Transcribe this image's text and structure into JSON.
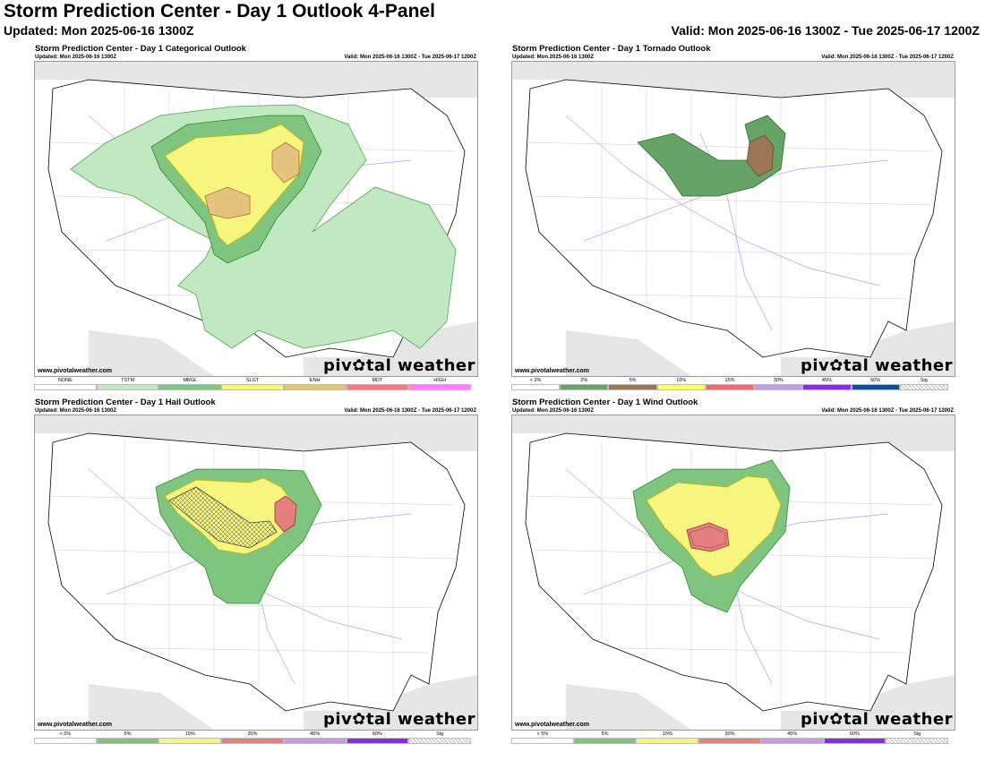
{
  "header": {
    "title": "Storm Prediction Center - Day 1 Outlook 4-Panel",
    "updated": "Updated: Mon 2025-06-16 1300Z",
    "valid": "Valid: Mon 2025-06-16 1300Z - Tue 2025-06-17 1200Z"
  },
  "panels": [
    {
      "title": "Storm Prediction Center - Day 1 Categorical Outlook",
      "updated": "Updated: Mon 2025-06-16 1300Z",
      "valid": "Valid: Mon 2025-06-16 1300Z - Tue 2025-06-17 1200Z",
      "site": "www.pivotalweather.com",
      "brand": "piv✿tal weather",
      "legend": [
        {
          "label": "NONE",
          "color": "#ffffff"
        },
        {
          "label": "TSTM",
          "color": "#c1e9c1"
        },
        {
          "label": "MRGL",
          "color": "#7fc57f"
        },
        {
          "label": "SLGT",
          "color": "#f6f67f"
        },
        {
          "label": "ENH",
          "color": "#e6c27f"
        },
        {
          "label": "MDT",
          "color": "#e67f7f"
        },
        {
          "label": "HIGH",
          "color": "#ff7fff"
        }
      ]
    },
    {
      "title": "Storm Prediction Center - Day 1 Tornado Outlook",
      "updated": "Updated: Mon 2025-06-16 1300Z",
      "valid": "Valid: Mon 2025-06-16 1300Z - Tue 2025-06-17 1200Z",
      "site": "www.pivotalweather.com",
      "brand": "piv✿tal weather",
      "legend": [
        {
          "label": "< 2%",
          "color": "#ffffff"
        },
        {
          "label": "2%",
          "color": "#66a366"
        },
        {
          "label": "5%",
          "color": "#9d7657"
        },
        {
          "label": "10%",
          "color": "#ffff66"
        },
        {
          "label": "15%",
          "color": "#e67070"
        },
        {
          "label": "30%",
          "color": "#c39ce6"
        },
        {
          "label": "45%",
          "color": "#8a2be2"
        },
        {
          "label": "60%",
          "color": "#104e8b"
        },
        {
          "label": "Sig",
          "color": "hatch"
        }
      ]
    },
    {
      "title": "Storm Prediction Center - Day 1 Hail Outlook",
      "updated": "Updated: Mon 2025-06-16 1300Z",
      "valid": "Valid: Mon 2025-06-16 1300Z - Tue 2025-06-17 1200Z",
      "site": "www.pivotalweather.com",
      "brand": "piv✿tal weather",
      "legend": [
        {
          "label": "< 5%",
          "color": "#ffffff"
        },
        {
          "label": "5%",
          "color": "#7fc57f"
        },
        {
          "label": "15%",
          "color": "#f6f67f"
        },
        {
          "label": "30%",
          "color": "#e67f7f"
        },
        {
          "label": "45%",
          "color": "#c39ce6"
        },
        {
          "label": "60%",
          "color": "#8a2be2"
        },
        {
          "label": "Sig",
          "color": "hatch"
        }
      ]
    },
    {
      "title": "Storm Prediction Center - Day 1 Wind Outlook",
      "updated": "Updated: Mon 2025-06-16 1300Z",
      "valid": "Valid: Mon 2025-06-16 1300Z - Tue 2025-06-17 1200Z",
      "site": "www.pivotalweather.com",
      "brand": "piv✿tal weather",
      "legend": [
        {
          "label": "< 5%",
          "color": "#ffffff"
        },
        {
          "label": "5%",
          "color": "#7fc57f"
        },
        {
          "label": "15%",
          "color": "#f6f67f"
        },
        {
          "label": "30%",
          "color": "#e67f7f"
        },
        {
          "label": "45%",
          "color": "#c39ce6"
        },
        {
          "label": "60%",
          "color": "#8a2be2"
        },
        {
          "label": "Sig",
          "color": "hatch"
        }
      ]
    }
  ]
}
